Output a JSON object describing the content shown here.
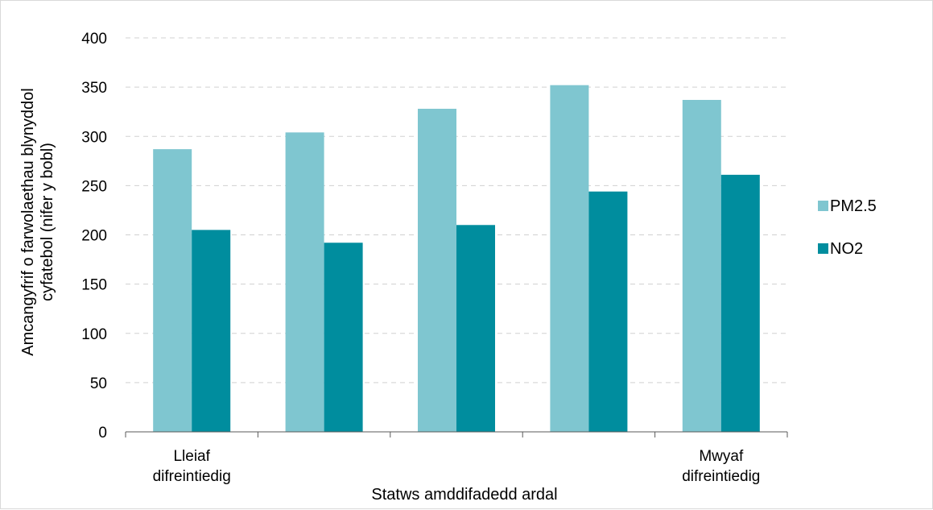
{
  "chart_data": {
    "type": "bar",
    "categories": [
      [
        "Lleiaf",
        "difreintiedig"
      ],
      [
        "",
        ""
      ],
      [
        "",
        ""
      ],
      [
        "",
        ""
      ],
      [
        "Mwyaf",
        "difreintiedig"
      ]
    ],
    "series": [
      {
        "name": "PM2.5",
        "color": "#7fc6d0",
        "values": [
          287,
          304,
          328,
          352,
          337
        ]
      },
      {
        "name": "NO2",
        "color": "#008d9e",
        "values": [
          205,
          192,
          210,
          244,
          261
        ]
      }
    ],
    "xlabel": "Statws amddifadedd ardal",
    "ylabel": [
      "Amcangyfrif o farwolaethau blynyddol",
      "cyfatebol (nifer y bobl)"
    ],
    "ylim": [
      0,
      400
    ],
    "yticks": [
      0,
      50,
      100,
      150,
      200,
      250,
      300,
      350,
      400
    ],
    "grid": true,
    "legend_position": "right"
  }
}
